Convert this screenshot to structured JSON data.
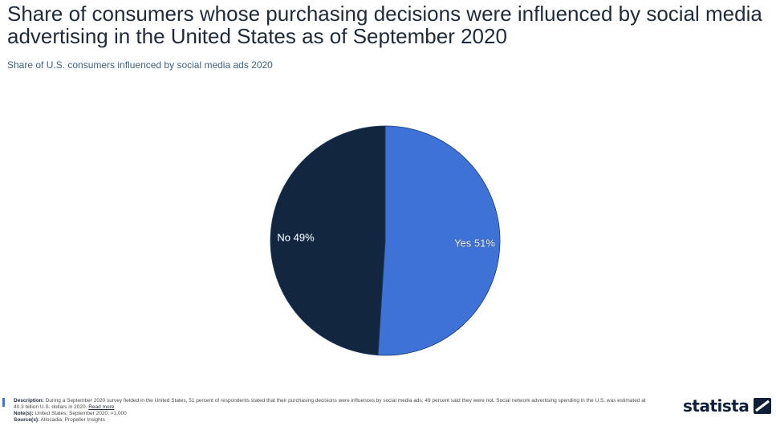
{
  "title": "Share of consumers whose purchasing decisions were influenced by social media advertising in the United States as of September 2020",
  "subtitle": "Share of U.S. consumers influenced by social media ads 2020",
  "colors": {
    "yes": "#3f72d6",
    "no": "#13263f",
    "accent": "#3f72d6"
  },
  "chart_data": {
    "type": "pie",
    "slices": [
      {
        "label": "Yes",
        "value": 51,
        "display": "Yes 51%"
      },
      {
        "label": "No",
        "value": 49,
        "display": "No 49%"
      }
    ],
    "unit": "%"
  },
  "footer": {
    "description_label": "Description:",
    "description_text": "During a September 2020 survey fielded in the United States, 51 percent of respondents stated that their purchasing decisions were influences by social media ads; 49 percent said they were not. Social network advertising spending in the U.S. was estimated at 40.3 billion U.S. dollars in 2020.",
    "read_more": "Read more",
    "notes_label": "Note(s):",
    "notes_text": "United States; September 2020; >1,000",
    "source_label": "Source(s):",
    "source_text": "Allocadia; Propeller Insights"
  },
  "brand": {
    "name": "statista"
  }
}
